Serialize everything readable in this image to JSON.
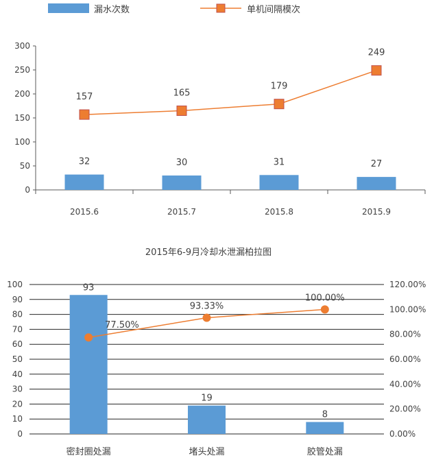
{
  "chart_data": [
    {
      "type": "bar+line",
      "title": "",
      "categories": [
        "2015.6",
        "2015.7",
        "2015.8",
        "2015.9"
      ],
      "series": [
        {
          "name": "漏水次数",
          "type": "bar",
          "values": [
            32,
            30,
            31,
            27
          ],
          "color": "#5B9BD5"
        },
        {
          "name": "单机间隔模次",
          "type": "line",
          "values": [
            157,
            165,
            179,
            249
          ],
          "color": "#ED7D31",
          "marker": "square"
        }
      ],
      "ylim": [
        0,
        300
      ],
      "yticks": [
        0,
        50,
        100,
        150,
        200,
        250,
        300
      ],
      "grid": false,
      "legend": "top"
    },
    {
      "type": "pareto",
      "title": "2015年6-9月冷却水泄漏柏拉图",
      "categories": [
        "密封圈处漏",
        "堵头处漏",
        "胶管处漏"
      ],
      "series": [
        {
          "name": "",
          "type": "bar",
          "values": [
            93,
            19,
            8
          ],
          "color": "#5B9BD5"
        },
        {
          "name": "",
          "type": "line",
          "axis": "right",
          "values": [
            77.5,
            93.33,
            100.0
          ],
          "labels": [
            "77.50%",
            "93.33%",
            "100.00%"
          ],
          "color": "#ED7D31",
          "marker": "circle"
        }
      ],
      "ylim": [
        0,
        100
      ],
      "yticks": [
        0,
        10,
        20,
        30,
        40,
        50,
        60,
        70,
        80,
        90,
        100
      ],
      "y2lim": [
        0,
        120
      ],
      "y2ticks": [
        "0.00%",
        "20.00%",
        "40.00%",
        "60.00%",
        "80.00%",
        "100.00%",
        "120.00%"
      ],
      "grid": true,
      "legend": "none"
    }
  ]
}
